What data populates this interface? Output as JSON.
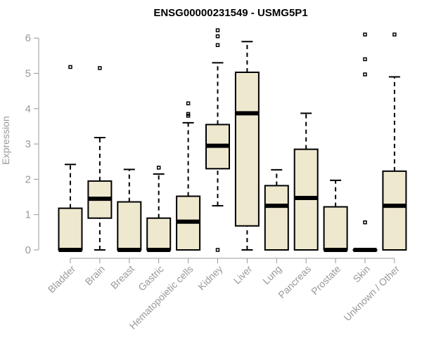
{
  "chart_data": {
    "type": "boxplot",
    "title": "ENSG00000231549 - USMG5P1",
    "xlabel": "",
    "ylabel": "Expression",
    "ylim": [
      0,
      6.2
    ],
    "yticks": [
      0,
      1,
      2,
      3,
      4,
      5,
      6
    ],
    "box_color": "#EEE8CF",
    "axis_color": "#999999",
    "categories": [
      "Bladder",
      "Brain",
      "Breast",
      "Gastric",
      "Hematopoietic cells",
      "Kidney",
      "Liver",
      "Lung",
      "Pancreas",
      "Prostate",
      "Skin",
      "Unknown / Other"
    ],
    "boxes": [
      {
        "whisker_low": 0,
        "q1": 0,
        "median": 0,
        "q3": 1.18,
        "whisker_high": 2.42,
        "outliers": [
          5.18
        ]
      },
      {
        "whisker_low": 0,
        "q1": 0.9,
        "median": 1.45,
        "q3": 1.95,
        "whisker_high": 3.18,
        "outliers": [
          5.15
        ]
      },
      {
        "whisker_low": 0,
        "q1": 0,
        "median": 0,
        "q3": 1.36,
        "whisker_high": 2.28,
        "outliers": []
      },
      {
        "whisker_low": 0,
        "q1": 0,
        "median": 0,
        "q3": 0.9,
        "whisker_high": 2.15,
        "outliers": [
          2.33
        ]
      },
      {
        "whisker_low": 0,
        "q1": 0,
        "median": 0.8,
        "q3": 1.52,
        "whisker_high": 3.6,
        "outliers": [
          3.8,
          3.85,
          4.15
        ]
      },
      {
        "whisker_low": 1.25,
        "q1": 2.3,
        "median": 2.95,
        "q3": 3.55,
        "whisker_high": 5.3,
        "outliers": [
          0,
          5.8,
          6.05,
          6.22
        ]
      },
      {
        "whisker_low": 0,
        "q1": 0.68,
        "median": 3.87,
        "q3": 5.03,
        "whisker_high": 5.9,
        "outliers": []
      },
      {
        "whisker_low": 0,
        "q1": 0,
        "median": 1.25,
        "q3": 1.82,
        "whisker_high": 2.27,
        "outliers": []
      },
      {
        "whisker_low": 0,
        "q1": 0,
        "median": 1.47,
        "q3": 2.85,
        "whisker_high": 3.87,
        "outliers": []
      },
      {
        "whisker_low": 0,
        "q1": 0,
        "median": 0,
        "q3": 1.22,
        "whisker_high": 1.97,
        "outliers": []
      },
      {
        "whisker_low": 0,
        "q1": 0,
        "median": 0,
        "q3": 0,
        "whisker_high": 0,
        "outliers": [
          0.78,
          4.97,
          5.4,
          6.1
        ]
      },
      {
        "whisker_low": 0,
        "q1": 0,
        "median": 1.25,
        "q3": 2.23,
        "whisker_high": 4.9,
        "outliers": [
          6.1
        ]
      }
    ]
  }
}
